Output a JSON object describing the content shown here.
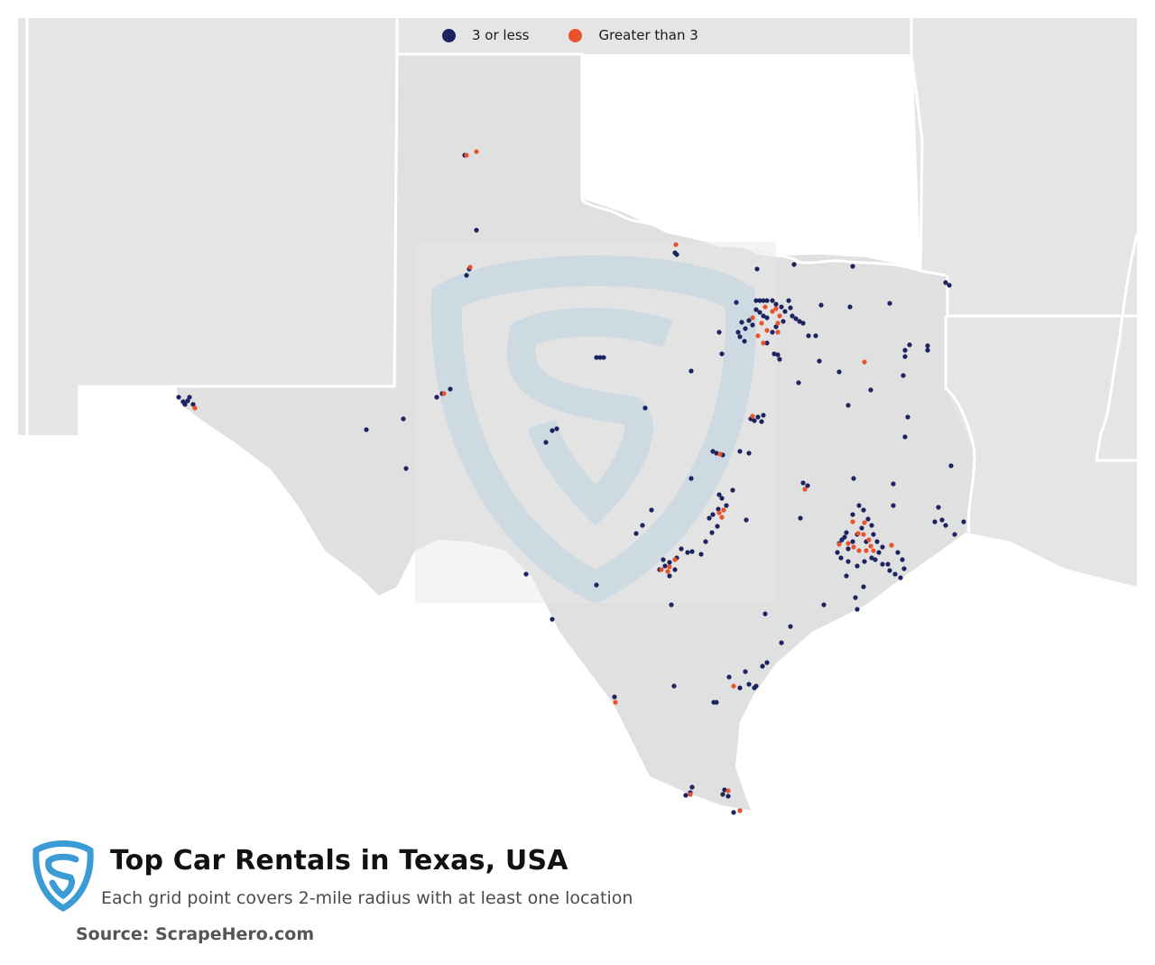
{
  "legend": {
    "low_label": "3 or less",
    "high_label": "Greater than 3"
  },
  "footer": {
    "title": "Top Car Rentals in Texas, USA",
    "subtitle": "Each grid point covers 2-mile radius with at least one location",
    "source": "Source: ScrapeHero.com"
  },
  "colors": {
    "low": "#1b2360",
    "high": "#e8532e",
    "land": "#e5e5e5",
    "border": "#ffffff",
    "watermark": "#c7d9e3",
    "logo": "#3a9bd5"
  }
}
